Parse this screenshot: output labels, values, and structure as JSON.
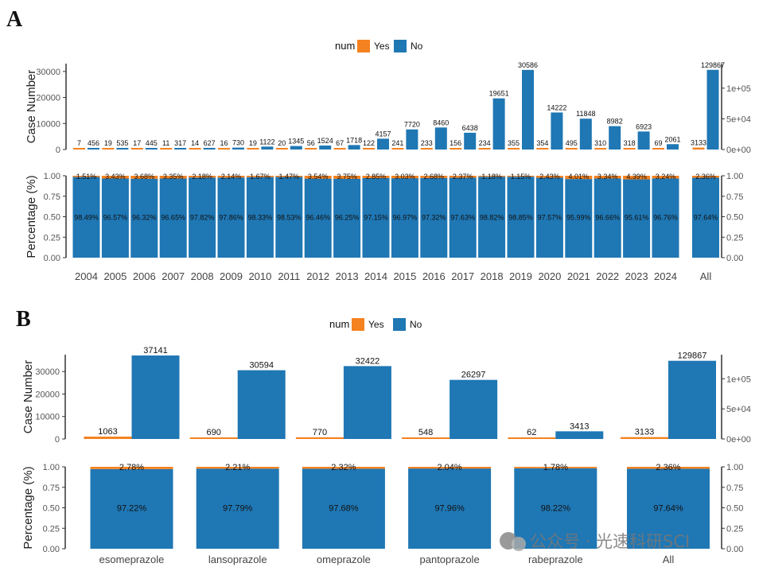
{
  "panels": [
    {
      "label": "A",
      "legend": {
        "title": "num",
        "items": [
          {
            "name": "Yes",
            "color": "#f58220"
          },
          {
            "name": "No",
            "color": "#1f77b4"
          }
        ]
      },
      "count_ylabel": "Case Number",
      "pct_ylabel": "Percentage (%)",
      "left_ticks": [
        "0",
        "10000",
        "20000",
        "30000"
      ],
      "right_ticks": [
        "0e+00",
        "5e+04",
        "1e+05"
      ],
      "pct_ticks": [
        "0.00",
        "0.25",
        "0.50",
        "0.75",
        "1.00"
      ],
      "categories": [
        "2004",
        "2005",
        "2006",
        "2007",
        "2008",
        "2009",
        "2010",
        "2011",
        "2012",
        "2013",
        "2014",
        "2015",
        "2016",
        "2017",
        "2018",
        "2019",
        "2020",
        "2021",
        "2022",
        "2023",
        "2024"
      ],
      "yes_labels": [
        "7",
        "19",
        "17",
        "11",
        "14",
        "16",
        "19",
        "20",
        "56",
        "67",
        "122",
        "241",
        "233",
        "156",
        "234",
        "355",
        "354",
        "495",
        "310",
        "318",
        "69"
      ],
      "no_labels": [
        "456",
        "535",
        "445",
        "317",
        "627",
        "730",
        "1122",
        "1345",
        "1524",
        "1718",
        "4157",
        "7720",
        "8460",
        "6438",
        "19651",
        "30586",
        "14222",
        "11848",
        "8982",
        "6923",
        "2061"
      ],
      "yes_pct_labels": [
        "1.51%",
        "3.43%",
        "3.68%",
        "3.35%",
        "2.18%",
        "2.14%",
        "1.67%",
        "1.47%",
        "3.54%",
        "3.75%",
        "2.85%",
        "3.03%",
        "2.68%",
        "2.37%",
        "1.18%",
        "1.15%",
        "2.43%",
        "4.01%",
        "3.34%",
        "4.39%",
        "3.24%"
      ],
      "no_pct_labels": [
        "98.49%",
        "96.57%",
        "96.32%",
        "96.65%",
        "97.82%",
        "97.86%",
        "98.33%",
        "98.53%",
        "96.46%",
        "96.25%",
        "97.15%",
        "96.97%",
        "97.32%",
        "97.63%",
        "98.82%",
        "98.85%",
        "97.57%",
        "95.99%",
        "96.66%",
        "95.61%",
        "96.76%"
      ],
      "all": {
        "label": "All",
        "yes_label": "3133",
        "no_label": "129867",
        "yes_pct_label": "2.36%",
        "no_pct_label": "97.64%"
      }
    },
    {
      "label": "B",
      "legend": {
        "title": "num",
        "items": [
          {
            "name": "Yes",
            "color": "#f58220"
          },
          {
            "name": "No",
            "color": "#1f77b4"
          }
        ]
      },
      "count_ylabel": "Case Number",
      "pct_ylabel": "Percentage (%)",
      "left_ticks": [
        "0",
        "10000",
        "20000",
        "30000"
      ],
      "right_ticks": [
        "0e+00",
        "5e+04",
        "1e+05"
      ],
      "pct_ticks": [
        "0.00",
        "0.25",
        "0.50",
        "0.75",
        "1.00"
      ],
      "categories": [
        "esomeprazole",
        "lansoprazole",
        "omeprazole",
        "pantoprazole",
        "rabeprazole"
      ],
      "yes_labels": [
        "1063",
        "690",
        "770",
        "548",
        "62"
      ],
      "no_labels": [
        "37141",
        "30594",
        "32422",
        "26297",
        "3413"
      ],
      "yes_pct_labels": [
        "2.78%",
        "2.21%",
        "2.32%",
        "2.04%",
        "1.78%"
      ],
      "no_pct_labels": [
        "97.22%",
        "97.79%",
        "97.68%",
        "97.96%",
        "98.22%"
      ],
      "all": {
        "label": "All",
        "yes_label": "3133",
        "no_label": "129867",
        "yes_pct_label": "2.36%",
        "no_pct_label": "97.64%"
      }
    }
  ],
  "watermark": "公众号 · 光速科研SCI",
  "chart_data": [
    {
      "type": "bar",
      "title": "",
      "xlabel": "",
      "ylabel": "Case Number",
      "categories": [
        "2004",
        "2005",
        "2006",
        "2007",
        "2008",
        "2009",
        "2010",
        "2011",
        "2012",
        "2013",
        "2014",
        "2015",
        "2016",
        "2017",
        "2018",
        "2019",
        "2020",
        "2021",
        "2022",
        "2023",
        "2024"
      ],
      "series": [
        {
          "name": "Yes",
          "values": [
            7,
            19,
            17,
            11,
            14,
            16,
            19,
            20,
            56,
            67,
            122,
            241,
            233,
            156,
            234,
            355,
            354,
            495,
            310,
            318,
            69
          ]
        },
        {
          "name": "No",
          "values": [
            456,
            535,
            445,
            317,
            627,
            730,
            1122,
            1345,
            1524,
            1718,
            4157,
            7720,
            8460,
            6438,
            19651,
            30586,
            14222,
            11848,
            8982,
            6923,
            2061
          ]
        }
      ],
      "ylim": [
        0,
        33000
      ],
      "all": {
        "category": "All",
        "Yes": 3133,
        "No": 129867,
        "ylim": [
          0,
          140000
        ]
      },
      "legend_title": "num",
      "legend": "top-center"
    },
    {
      "type": "bar",
      "stacked": true,
      "title": "",
      "xlabel": "",
      "ylabel": "Percentage (%)",
      "categories": [
        "2004",
        "2005",
        "2006",
        "2007",
        "2008",
        "2009",
        "2010",
        "2011",
        "2012",
        "2013",
        "2014",
        "2015",
        "2016",
        "2017",
        "2018",
        "2019",
        "2020",
        "2021",
        "2022",
        "2023",
        "2024",
        "All"
      ],
      "series": [
        {
          "name": "Yes",
          "values": [
            0.0151,
            0.0343,
            0.0368,
            0.0335,
            0.0218,
            0.0214,
            0.0167,
            0.0147,
            0.0354,
            0.0375,
            0.0285,
            0.0303,
            0.0268,
            0.0237,
            0.0118,
            0.0115,
            0.0243,
            0.0401,
            0.0334,
            0.0439,
            0.0324,
            0.0236
          ]
        },
        {
          "name": "No",
          "values": [
            0.9849,
            0.9657,
            0.9632,
            0.9665,
            0.9782,
            0.9786,
            0.9833,
            0.9853,
            0.9646,
            0.9625,
            0.9715,
            0.9697,
            0.9732,
            0.9763,
            0.9882,
            0.9885,
            0.9757,
            0.9599,
            0.9666,
            0.9561,
            0.9676,
            0.9764
          ]
        }
      ],
      "ylim": [
        0,
        1
      ]
    },
    {
      "type": "bar",
      "title": "",
      "xlabel": "",
      "ylabel": "Case Number",
      "categories": [
        "esomeprazole",
        "lansoprazole",
        "omeprazole",
        "pantoprazole",
        "rabeprazole"
      ],
      "series": [
        {
          "name": "Yes",
          "values": [
            1063,
            690,
            770,
            548,
            62
          ]
        },
        {
          "name": "No",
          "values": [
            37141,
            30594,
            32422,
            26297,
            3413
          ]
        }
      ],
      "ylim": [
        0,
        37500
      ],
      "all": {
        "category": "All",
        "Yes": 3133,
        "No": 129867,
        "ylim": [
          0,
          140000
        ]
      },
      "legend_title": "num",
      "legend": "top-center"
    },
    {
      "type": "bar",
      "stacked": true,
      "title": "",
      "xlabel": "",
      "ylabel": "Percentage (%)",
      "categories": [
        "esomeprazole",
        "lansoprazole",
        "omeprazole",
        "pantoprazole",
        "rabeprazole",
        "All"
      ],
      "series": [
        {
          "name": "Yes",
          "values": [
            0.0278,
            0.0221,
            0.0232,
            0.0204,
            0.0178,
            0.0236
          ]
        },
        {
          "name": "No",
          "values": [
            0.9722,
            0.9779,
            0.9768,
            0.9796,
            0.9822,
            0.9764
          ]
        }
      ],
      "ylim": [
        0,
        1
      ]
    }
  ]
}
